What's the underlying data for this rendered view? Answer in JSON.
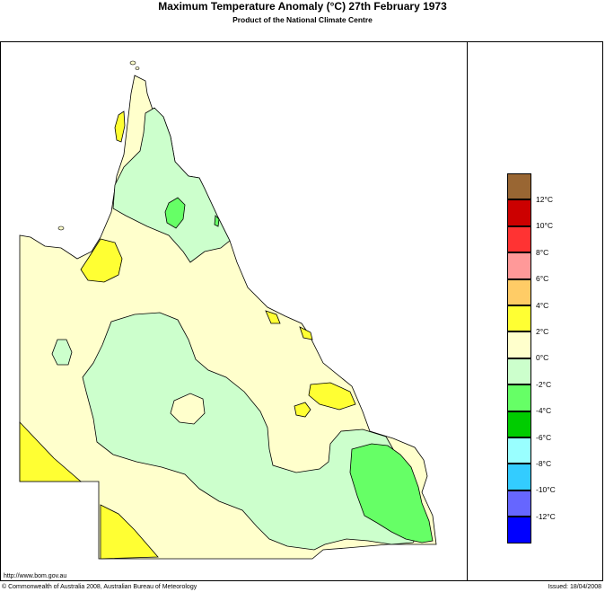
{
  "title": "Maximum Temperature Anomaly (°C)  27th February 1973",
  "subtitle": "Product of the National Climate Centre",
  "legend": {
    "items": [
      {
        "color": "#996633",
        "label": ""
      },
      {
        "color": "#cc0000",
        "label": "12°C"
      },
      {
        "color": "#ff3333",
        "label": "10°C"
      },
      {
        "color": "#ff9999",
        "label": "8°C"
      },
      {
        "color": "#ffcc66",
        "label": "6°C"
      },
      {
        "color": "#ffff33",
        "label": "4°C"
      },
      {
        "color": "#ffffcc",
        "label": "2°C"
      },
      {
        "color": "#ccffcc",
        "label": "0°C"
      },
      {
        "color": "#66ff66",
        "label": "-2°C"
      },
      {
        "color": "#00cc00",
        "label": "-4°C"
      },
      {
        "color": "#99ffff",
        "label": "-6°C"
      },
      {
        "color": "#33ccff",
        "label": "-8°C"
      },
      {
        "color": "#6666ff",
        "label": "-10°C"
      },
      {
        "color": "#0000ff",
        "label": "-12°C"
      }
    ]
  },
  "footer": {
    "url": "http://www.bom.gov.au",
    "copyright": "© Commonwealth of Australia 2008, Australian Bureau of Meteorology",
    "issued": "Issued: 18/04/2008"
  }
}
